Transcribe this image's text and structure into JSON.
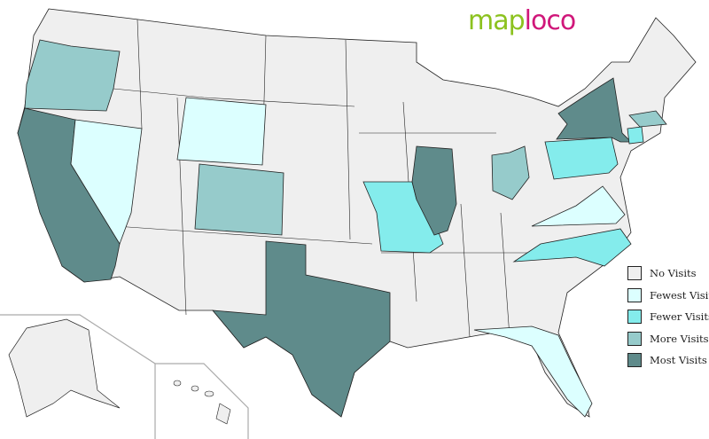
{
  "logo": {
    "part1": "map",
    "part2": "loco"
  },
  "legend": [
    {
      "label": "No Visits",
      "color": "#efefef"
    },
    {
      "label": "Fewest Visits",
      "color": "#dcffff"
    },
    {
      "label": "Fewer Visits",
      "color": "#84ecec"
    },
    {
      "label": "More Visits",
      "color": "#96cbcb"
    },
    {
      "label": "Most Visits",
      "color": "#5f8b8b"
    }
  ],
  "states": [
    {
      "state": "Oregon",
      "category": 3
    },
    {
      "state": "California",
      "category": 4
    },
    {
      "state": "Nevada",
      "category": 1
    },
    {
      "state": "Wyoming",
      "category": 1
    },
    {
      "state": "Colorado",
      "category": 3
    },
    {
      "state": "Texas",
      "category": 4
    },
    {
      "state": "Missouri",
      "category": 2
    },
    {
      "state": "Illinois",
      "category": 4
    },
    {
      "state": "Ohio",
      "category": 3
    },
    {
      "state": "Pennsylvania",
      "category": 2
    },
    {
      "state": "New York",
      "category": 4
    },
    {
      "state": "Virginia",
      "category": 1
    },
    {
      "state": "North Carolina",
      "category": 2
    },
    {
      "state": "Florida",
      "category": 1
    },
    {
      "state": "Massachusetts",
      "category": 3
    },
    {
      "state": "Connecticut",
      "category": 2
    }
  ]
}
